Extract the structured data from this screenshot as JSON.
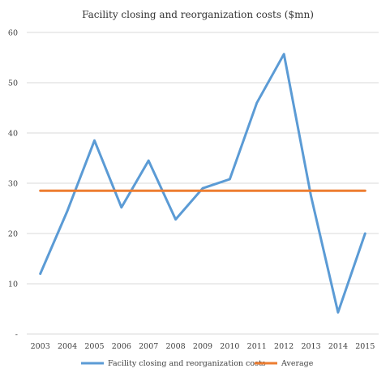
{
  "chart_data": {
    "type": "line",
    "title": "Facility closing and reorganization costs ($mn)",
    "xlabel": "",
    "ylabel": "",
    "categories": [
      "2003",
      "2004",
      "2005",
      "2006",
      "2007",
      "2008",
      "2009",
      "2010",
      "2011",
      "2012",
      "2013",
      "2014",
      "2015"
    ],
    "ylim": [
      0,
      60
    ],
    "yticks": [
      0,
      10,
      20,
      30,
      40,
      50,
      60
    ],
    "ytick_labels": [
      "-",
      "10",
      "20",
      "30",
      "40",
      "50",
      "60"
    ],
    "grid": true,
    "legend_position": "bottom",
    "series": [
      {
        "name": "Facility closing and reorganization costs",
        "color": "#5b9bd5",
        "values": [
          12,
          24.5,
          38.5,
          25.2,
          34.5,
          22.8,
          29,
          30.8,
          46,
          55.7,
          27.5,
          4.3,
          20
        ]
      },
      {
        "name": "Average",
        "color": "#ed7d31",
        "values": [
          28.5,
          28.5,
          28.5,
          28.5,
          28.5,
          28.5,
          28.5,
          28.5,
          28.5,
          28.5,
          28.5,
          28.5,
          28.5
        ]
      }
    ]
  }
}
